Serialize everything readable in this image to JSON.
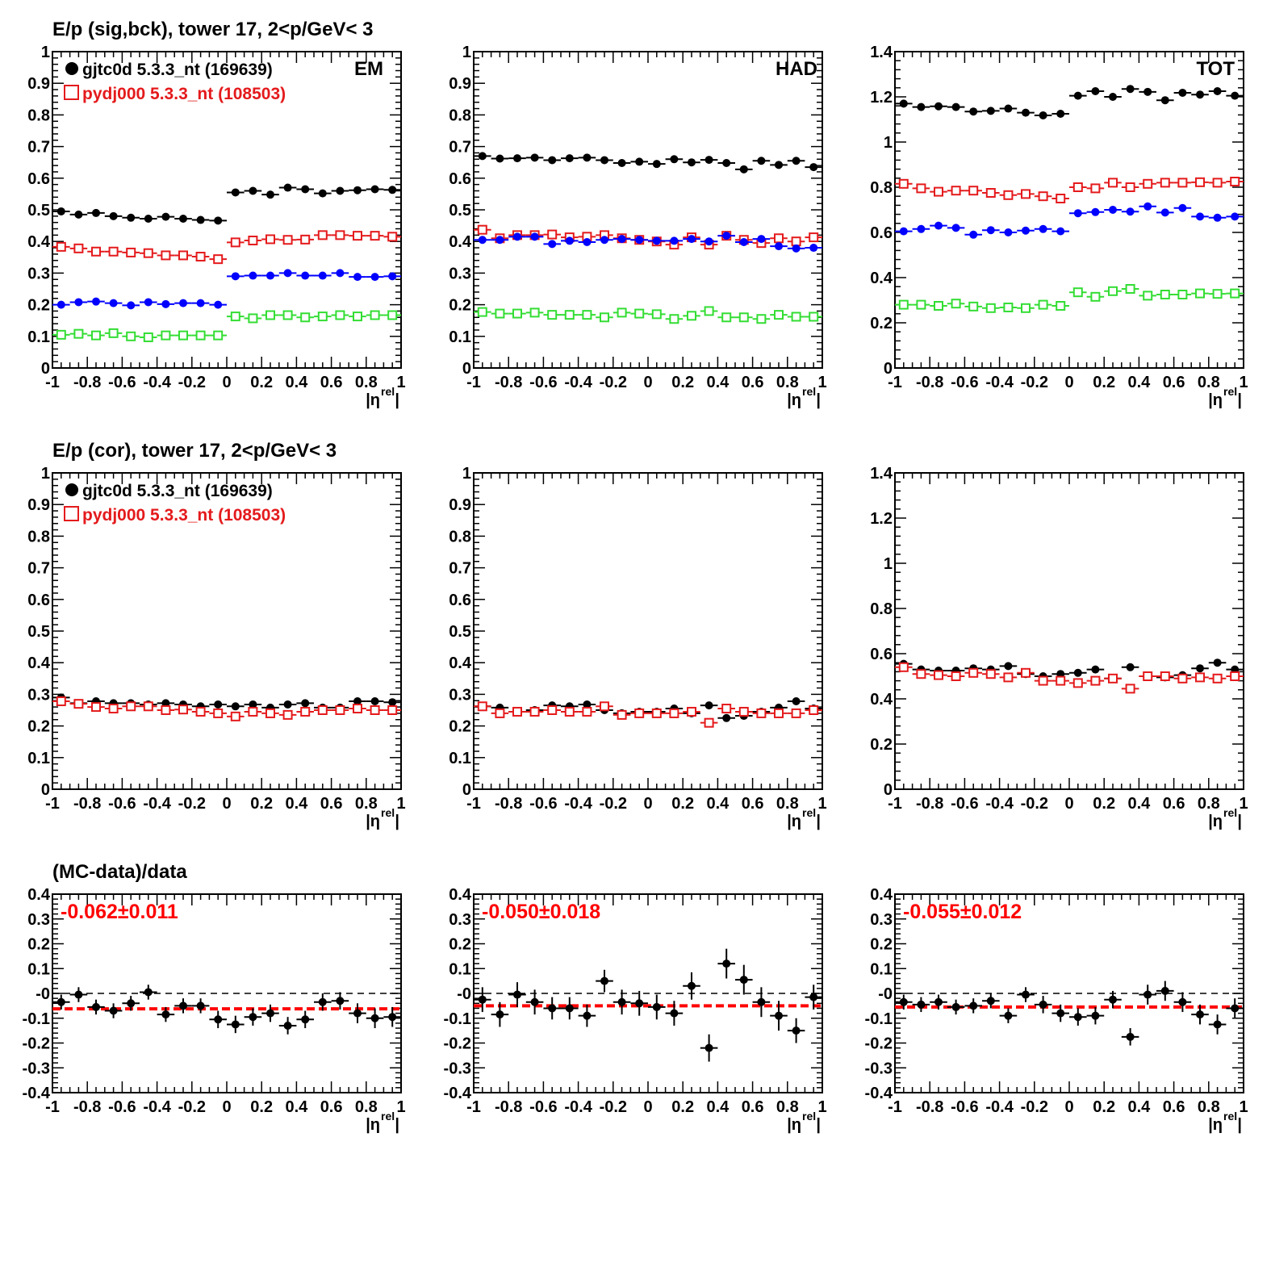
{
  "row_titles": [
    "E/p (sig,bck), tower 17,  2<p/GeV< 3",
    "E/p (cor), tower 17,  2<p/GeV< 3",
    "(MC-data)/data"
  ],
  "legend": {
    "data_label": "gjtc0d 5.3.3_nt (169639)",
    "mc_label": "pydj000 5.3.3_nt (108503)"
  },
  "panel_labels": [
    "EM",
    "HAD",
    "TOT"
  ],
  "xaxis_label": "|η",
  "xaxis_sup": "rel",
  "colors": {
    "data": "#000000",
    "mc": "#e41a1c",
    "blue": "#0000ff",
    "green": "#33dd33",
    "fit": "#ff0000"
  },
  "chart_data": [
    {
      "type": "scatter",
      "panel": "EM",
      "title": "E/p (sig,bck), tower 17,  2<p/GeV< 3",
      "xlabel": "|η^rel|",
      "xlim": [
        -1,
        1
      ],
      "ylim": [
        0,
        1
      ],
      "x": [
        -0.95,
        -0.85,
        -0.75,
        -0.65,
        -0.55,
        -0.45,
        -0.35,
        -0.25,
        -0.15,
        -0.05,
        0.05,
        0.15,
        0.25,
        0.35,
        0.45,
        0.55,
        0.65,
        0.75,
        0.85,
        0.95
      ],
      "series": [
        {
          "name": "gjtc0d 5.3.3_nt (169639)",
          "values": [
            0.495,
            0.485,
            0.49,
            0.48,
            0.475,
            0.472,
            0.478,
            0.472,
            0.468,
            0.466,
            0.555,
            0.56,
            0.548,
            0.57,
            0.565,
            0.552,
            0.56,
            0.562,
            0.565,
            0.563
          ]
        },
        {
          "name": "pydj000 5.3.3_nt (108503)",
          "values": [
            0.383,
            0.378,
            0.368,
            0.368,
            0.365,
            0.363,
            0.356,
            0.356,
            0.352,
            0.344,
            0.397,
            0.403,
            0.407,
            0.405,
            0.406,
            0.42,
            0.42,
            0.418,
            0.418,
            0.415
          ]
        },
        {
          "values": [
            0.2,
            0.208,
            0.21,
            0.205,
            0.198,
            0.208,
            0.202,
            0.205,
            0.205,
            0.2,
            0.29,
            0.292,
            0.292,
            0.3,
            0.292,
            0.292,
            0.3,
            0.288,
            0.288,
            0.29
          ]
        },
        {
          "values": [
            0.105,
            0.108,
            0.103,
            0.11,
            0.1,
            0.097,
            0.103,
            0.103,
            0.103,
            0.103,
            0.163,
            0.157,
            0.167,
            0.167,
            0.16,
            0.163,
            0.167,
            0.163,
            0.167,
            0.167
          ]
        }
      ]
    },
    {
      "type": "scatter",
      "panel": "HAD",
      "xlabel": "|η^rel|",
      "xlim": [
        -1,
        1
      ],
      "ylim": [
        0,
        1
      ],
      "x": [
        -0.95,
        -0.85,
        -0.75,
        -0.65,
        -0.55,
        -0.45,
        -0.35,
        -0.25,
        -0.15,
        -0.05,
        0.05,
        0.15,
        0.25,
        0.35,
        0.45,
        0.55,
        0.65,
        0.75,
        0.85,
        0.95
      ],
      "series": [
        {
          "name": "gjtc0d 5.3.3_nt (169639)",
          "values": [
            0.67,
            0.662,
            0.663,
            0.665,
            0.657,
            0.663,
            0.665,
            0.657,
            0.648,
            0.652,
            0.645,
            0.66,
            0.65,
            0.658,
            0.648,
            0.628,
            0.655,
            0.642,
            0.655,
            0.635
          ]
        },
        {
          "name": "pydj000 5.3.3_nt (108503)",
          "values": [
            0.437,
            0.41,
            0.42,
            0.42,
            0.422,
            0.413,
            0.415,
            0.42,
            0.41,
            0.405,
            0.4,
            0.39,
            0.413,
            0.39,
            0.418,
            0.405,
            0.395,
            0.41,
            0.4,
            0.413
          ]
        },
        {
          "values": [
            0.405,
            0.405,
            0.415,
            0.415,
            0.392,
            0.402,
            0.398,
            0.405,
            0.408,
            0.405,
            0.402,
            0.402,
            0.408,
            0.4,
            0.418,
            0.398,
            0.408,
            0.385,
            0.378,
            0.38
          ]
        },
        {
          "values": [
            0.177,
            0.172,
            0.172,
            0.175,
            0.168,
            0.168,
            0.168,
            0.16,
            0.175,
            0.172,
            0.17,
            0.155,
            0.165,
            0.18,
            0.16,
            0.16,
            0.155,
            0.168,
            0.162,
            0.162
          ]
        }
      ]
    },
    {
      "type": "scatter",
      "panel": "TOT",
      "xlabel": "|η^rel|",
      "xlim": [
        -1,
        1
      ],
      "ylim": [
        0,
        1.4
      ],
      "x": [
        -0.95,
        -0.85,
        -0.75,
        -0.65,
        -0.55,
        -0.45,
        -0.35,
        -0.25,
        -0.15,
        -0.05,
        0.05,
        0.15,
        0.25,
        0.35,
        0.45,
        0.55,
        0.65,
        0.75,
        0.85,
        0.95
      ],
      "series": [
        {
          "name": "gjtc0d 5.3.3_nt (169639)",
          "values": [
            1.17,
            1.155,
            1.158,
            1.155,
            1.135,
            1.138,
            1.148,
            1.13,
            1.118,
            1.125,
            1.205,
            1.225,
            1.2,
            1.235,
            1.222,
            1.185,
            1.218,
            1.21,
            1.225,
            1.205
          ]
        },
        {
          "name": "pydj000 5.3.3_nt (108503)",
          "values": [
            0.815,
            0.795,
            0.78,
            0.785,
            0.785,
            0.775,
            0.765,
            0.77,
            0.76,
            0.75,
            0.8,
            0.795,
            0.82,
            0.8,
            0.815,
            0.82,
            0.82,
            0.822,
            0.82,
            0.825
          ]
        },
        {
          "values": [
            0.605,
            0.615,
            0.63,
            0.62,
            0.59,
            0.61,
            0.6,
            0.608,
            0.615,
            0.605,
            0.685,
            0.69,
            0.7,
            0.692,
            0.715,
            0.688,
            0.708,
            0.67,
            0.665,
            0.67
          ]
        },
        {
          "values": [
            0.28,
            0.28,
            0.275,
            0.285,
            0.272,
            0.265,
            0.268,
            0.265,
            0.28,
            0.275,
            0.335,
            0.315,
            0.34,
            0.35,
            0.32,
            0.325,
            0.325,
            0.33,
            0.328,
            0.33
          ]
        }
      ]
    },
    {
      "type": "scatter",
      "panel": "EM",
      "title": "E/p (cor), tower 17,  2<p/GeV< 3",
      "xlabel": "|η^rel|",
      "xlim": [
        -1,
        1
      ],
      "ylim": [
        0,
        1
      ],
      "x": [
        -0.95,
        -0.85,
        -0.75,
        -0.65,
        -0.55,
        -0.45,
        -0.35,
        -0.25,
        -0.15,
        -0.05,
        0.05,
        0.15,
        0.25,
        0.35,
        0.45,
        0.55,
        0.65,
        0.75,
        0.85,
        0.95
      ],
      "series": [
        {
          "name": "gjtc0d 5.3.3_nt (169639)",
          "values": [
            0.29,
            0.272,
            0.278,
            0.272,
            0.272,
            0.268,
            0.272,
            0.268,
            0.262,
            0.268,
            0.262,
            0.268,
            0.258,
            0.268,
            0.272,
            0.258,
            0.258,
            0.278,
            0.278,
            0.275
          ]
        },
        {
          "name": "pydj000 5.3.3_nt (108503)",
          "values": [
            0.278,
            0.27,
            0.26,
            0.255,
            0.262,
            0.262,
            0.25,
            0.252,
            0.245,
            0.24,
            0.23,
            0.245,
            0.24,
            0.235,
            0.245,
            0.25,
            0.25,
            0.255,
            0.25,
            0.25
          ]
        }
      ]
    },
    {
      "type": "scatter",
      "panel": "HAD",
      "xlabel": "|η^rel|",
      "xlim": [
        -1,
        1
      ],
      "ylim": [
        0,
        1
      ],
      "x": [
        -0.95,
        -0.85,
        -0.75,
        -0.65,
        -0.55,
        -0.45,
        -0.35,
        -0.25,
        -0.15,
        -0.05,
        0.05,
        0.15,
        0.25,
        0.35,
        0.45,
        0.55,
        0.65,
        0.75,
        0.85,
        0.95
      ],
      "series": [
        {
          "name": "gjtc0d 5.3.3_nt (169639)",
          "values": [
            0.262,
            0.258,
            0.245,
            0.25,
            0.265,
            0.262,
            0.268,
            0.25,
            0.24,
            0.245,
            0.245,
            0.255,
            0.24,
            0.265,
            0.225,
            0.232,
            0.245,
            0.258,
            0.278,
            0.255
          ]
        },
        {
          "name": "pydj000 5.3.3_nt (108503)",
          "values": [
            0.262,
            0.24,
            0.245,
            0.245,
            0.25,
            0.245,
            0.245,
            0.262,
            0.235,
            0.24,
            0.24,
            0.24,
            0.245,
            0.21,
            0.255,
            0.245,
            0.24,
            0.24,
            0.24,
            0.25
          ]
        }
      ]
    },
    {
      "type": "scatter",
      "panel": "TOT",
      "xlabel": "|η^rel|",
      "xlim": [
        -1,
        1
      ],
      "ylim": [
        0,
        1.4
      ],
      "x": [
        -0.95,
        -0.85,
        -0.75,
        -0.65,
        -0.55,
        -0.45,
        -0.35,
        -0.25,
        -0.15,
        -0.05,
        0.05,
        0.15,
        0.25,
        0.35,
        0.45,
        0.55,
        0.65,
        0.75,
        0.85,
        0.95
      ],
      "series": [
        {
          "name": "gjtc0d 5.3.3_nt (169639)",
          "values": [
            0.555,
            0.53,
            0.525,
            0.525,
            0.535,
            0.53,
            0.545,
            0.51,
            0.5,
            0.51,
            0.515,
            0.53,
            0.49,
            0.54,
            0.5,
            0.495,
            0.505,
            0.535,
            0.56,
            0.53
          ]
        },
        {
          "name": "pydj000 5.3.3_nt (108503)",
          "values": [
            0.54,
            0.51,
            0.505,
            0.5,
            0.515,
            0.51,
            0.495,
            0.515,
            0.48,
            0.48,
            0.47,
            0.48,
            0.49,
            0.445,
            0.5,
            0.5,
            0.49,
            0.495,
            0.49,
            0.5
          ]
        }
      ]
    },
    {
      "type": "scatter",
      "panel": "EM",
      "title": "(MC-data)/data",
      "xlabel": "|η^rel|",
      "xlim": [
        -1,
        1
      ],
      "ylim": [
        -0.4,
        0.4
      ],
      "fit_text": "-0.062±0.011",
      "fit_value": -0.062,
      "reference_line": 0,
      "x": [
        -0.95,
        -0.85,
        -0.75,
        -0.65,
        -0.55,
        -0.45,
        -0.35,
        -0.25,
        -0.15,
        -0.05,
        0.05,
        0.15,
        0.25,
        0.35,
        0.45,
        0.55,
        0.65,
        0.75,
        0.85,
        0.95
      ],
      "values": [
        -0.035,
        -0.005,
        -0.055,
        -0.07,
        -0.04,
        0.005,
        -0.085,
        -0.05,
        -0.05,
        -0.105,
        -0.125,
        -0.095,
        -0.08,
        -0.13,
        -0.105,
        -0.035,
        -0.03,
        -0.08,
        -0.1,
        -0.095
      ],
      "errors": [
        0.03,
        0.03,
        0.03,
        0.03,
        0.03,
        0.03,
        0.03,
        0.03,
        0.03,
        0.035,
        0.035,
        0.035,
        0.035,
        0.035,
        0.035,
        0.035,
        0.035,
        0.04,
        0.04,
        0.04
      ]
    },
    {
      "type": "scatter",
      "panel": "HAD",
      "xlabel": "|η^rel|",
      "xlim": [
        -1,
        1
      ],
      "ylim": [
        -0.4,
        0.4
      ],
      "fit_text": "-0.050±0.018",
      "fit_value": -0.05,
      "reference_line": 0,
      "x": [
        -0.95,
        -0.85,
        -0.75,
        -0.65,
        -0.55,
        -0.45,
        -0.35,
        -0.25,
        -0.15,
        -0.05,
        0.05,
        0.15,
        0.25,
        0.35,
        0.45,
        0.55,
        0.65,
        0.75,
        0.85,
        0.95
      ],
      "values": [
        -0.025,
        -0.085,
        -0.005,
        -0.035,
        -0.06,
        -0.06,
        -0.09,
        0.05,
        -0.035,
        -0.04,
        -0.055,
        -0.08,
        0.03,
        -0.22,
        0.12,
        0.055,
        -0.035,
        -0.09,
        -0.15,
        -0.015
      ],
      "errors": [
        0.05,
        0.05,
        0.05,
        0.05,
        0.045,
        0.045,
        0.045,
        0.045,
        0.05,
        0.05,
        0.05,
        0.05,
        0.055,
        0.055,
        0.06,
        0.06,
        0.06,
        0.06,
        0.05,
        0.05
      ]
    },
    {
      "type": "scatter",
      "panel": "TOT",
      "xlabel": "|η^rel|",
      "xlim": [
        -1,
        1
      ],
      "ylim": [
        -0.4,
        0.4
      ],
      "fit_text": "-0.055±0.012",
      "fit_value": -0.055,
      "reference_line": 0,
      "x": [
        -0.95,
        -0.85,
        -0.75,
        -0.65,
        -0.55,
        -0.45,
        -0.35,
        -0.25,
        -0.15,
        -0.05,
        0.05,
        0.15,
        0.25,
        0.35,
        0.45,
        0.55,
        0.65,
        0.75,
        0.85,
        0.95
      ],
      "values": [
        -0.035,
        -0.045,
        -0.035,
        -0.055,
        -0.05,
        -0.03,
        -0.09,
        -0.005,
        -0.045,
        -0.08,
        -0.095,
        -0.09,
        -0.025,
        -0.175,
        -0.005,
        0.01,
        -0.035,
        -0.085,
        -0.125,
        -0.06
      ],
      "errors": [
        0.03,
        0.03,
        0.03,
        0.03,
        0.03,
        0.03,
        0.03,
        0.03,
        0.035,
        0.035,
        0.035,
        0.035,
        0.035,
        0.035,
        0.04,
        0.04,
        0.04,
        0.04,
        0.04,
        0.04
      ]
    }
  ]
}
